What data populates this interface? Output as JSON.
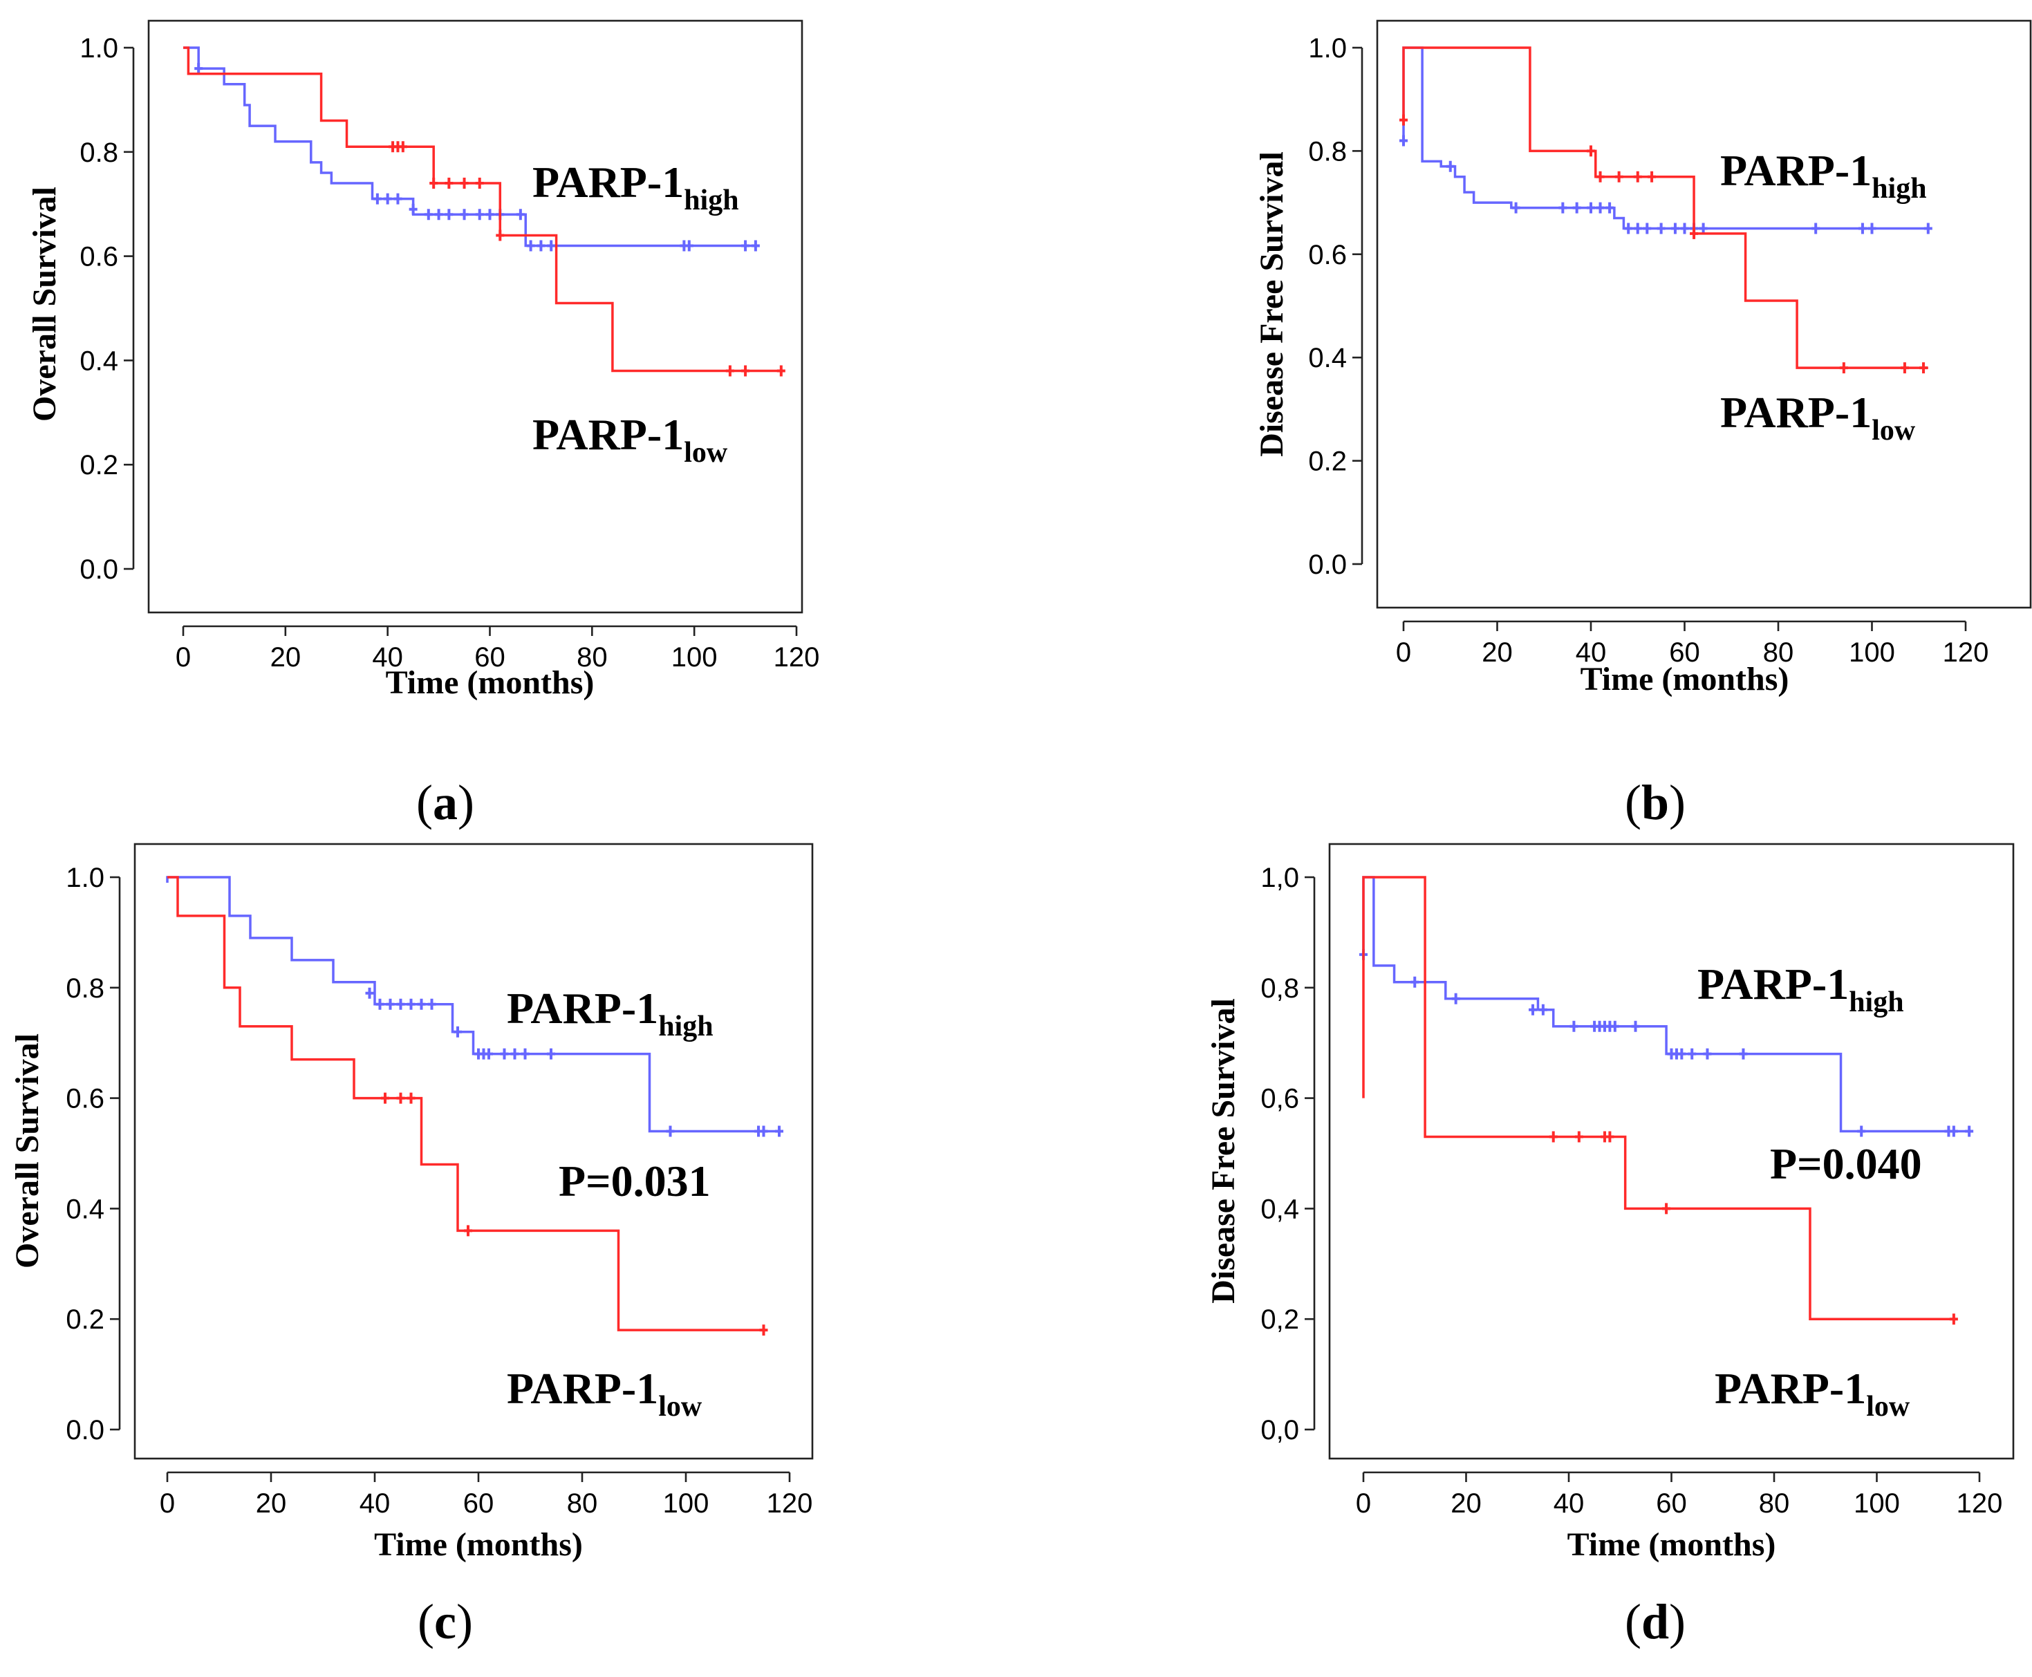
{
  "colors": {
    "high": "#6666ff",
    "low": "#ff2a2a",
    "axis": "#222222"
  },
  "chart_data": [
    {
      "type": "line",
      "panel": "a",
      "caption_letter": "a",
      "xlabel": "Time (months)",
      "ylabel": "Overall Survival",
      "xlim": [
        0,
        120
      ],
      "ylim": [
        0.0,
        1.0
      ],
      "xticks": [
        "0",
        "20",
        "40",
        "60",
        "80",
        "100",
        "120"
      ],
      "yticks": [
        "0.0",
        "0.2",
        "0.4",
        "0.6",
        "0.8",
        "1.0"
      ],
      "series": [
        {
          "name": "PARP-1 high",
          "color_key": "high",
          "x": [
            0,
            1,
            3,
            5,
            8,
            10,
            12,
            13,
            16,
            18,
            22,
            25,
            27,
            29,
            33,
            37,
            40,
            45,
            48,
            50,
            63,
            67,
            69,
            72,
            112
          ],
          "y": [
            1.0,
            1.0,
            0.96,
            0.96,
            0.93,
            0.93,
            0.89,
            0.85,
            0.85,
            0.82,
            0.82,
            0.78,
            0.76,
            0.74,
            0.74,
            0.71,
            0.71,
            0.68,
            0.68,
            0.68,
            0.68,
            0.62,
            0.62,
            0.62,
            0.62
          ],
          "censored": [
            [
              3,
              0.96
            ],
            [
              38,
              0.71
            ],
            [
              40,
              0.71
            ],
            [
              42,
              0.71
            ],
            [
              45,
              0.69
            ],
            [
              48,
              0.68
            ],
            [
              50,
              0.68
            ],
            [
              52,
              0.68
            ],
            [
              55,
              0.68
            ],
            [
              58,
              0.68
            ],
            [
              60,
              0.68
            ],
            [
              62,
              0.68
            ],
            [
              66,
              0.68
            ],
            [
              68,
              0.62
            ],
            [
              70,
              0.62
            ],
            [
              72,
              0.62
            ],
            [
              98,
              0.62
            ],
            [
              99,
              0.62
            ],
            [
              110,
              0.62
            ],
            [
              112,
              0.62
            ]
          ]
        },
        {
          "name": "PARP-1 low",
          "color_key": "low",
          "x": [
            0,
            1,
            25,
            27,
            32,
            49,
            62,
            73,
            84,
            117
          ],
          "y": [
            1.0,
            0.95,
            0.95,
            0.86,
            0.81,
            0.74,
            0.64,
            0.51,
            0.38,
            0.38
          ],
          "censored": [
            [
              41,
              0.81
            ],
            [
              42,
              0.81
            ],
            [
              43,
              0.81
            ],
            [
              49,
              0.74
            ],
            [
              52,
              0.74
            ],
            [
              55,
              0.74
            ],
            [
              58,
              0.74
            ],
            [
              62,
              0.64
            ],
            [
              107,
              0.38
            ],
            [
              110,
              0.38
            ],
            [
              117,
              0.38
            ]
          ]
        }
      ],
      "labels": {
        "high_main": "PARP-1",
        "high_sub": "high",
        "low_main": "PARP-1",
        "low_sub": "low"
      }
    },
    {
      "type": "line",
      "panel": "b",
      "caption_letter": "b",
      "xlabel": "Time (months)",
      "ylabel": "Disease Free Survival",
      "xlim": [
        0,
        120
      ],
      "ylim": [
        0.0,
        1.0
      ],
      "xticks": [
        "0",
        "20",
        "40",
        "60",
        "80",
        "100",
        "120"
      ],
      "yticks": [
        "0.0",
        "0.2",
        "0.4",
        "0.6",
        "0.8",
        "1.0"
      ],
      "series": [
        {
          "name": "PARP-1 high",
          "color_key": "high",
          "x": [
            0,
            0,
            3,
            4,
            8,
            11,
            13,
            15,
            23,
            45,
            47,
            112
          ],
          "y": [
            0.82,
            1.0,
            1.0,
            0.78,
            0.77,
            0.75,
            0.72,
            0.7,
            0.69,
            0.67,
            0.65,
            0.65
          ],
          "censored": [
            [
              0,
              0.82
            ],
            [
              10,
              0.77
            ],
            [
              24,
              0.69
            ],
            [
              34,
              0.69
            ],
            [
              37,
              0.69
            ],
            [
              40,
              0.69
            ],
            [
              42,
              0.69
            ],
            [
              44,
              0.69
            ],
            [
              48,
              0.65
            ],
            [
              50,
              0.65
            ],
            [
              52,
              0.65
            ],
            [
              55,
              0.65
            ],
            [
              58,
              0.65
            ],
            [
              60,
              0.65
            ],
            [
              62,
              0.65
            ],
            [
              64,
              0.65
            ],
            [
              88,
              0.65
            ],
            [
              98,
              0.65
            ],
            [
              100,
              0.65
            ],
            [
              112,
              0.65
            ]
          ]
        },
        {
          "name": "PARP-1 low",
          "color_key": "low",
          "x": [
            0,
            0,
            27,
            41,
            62,
            73,
            84,
            112
          ],
          "y": [
            0.86,
            1.0,
            0.8,
            0.75,
            0.64,
            0.51,
            0.38,
            0.38
          ],
          "censored": [
            [
              0,
              0.86
            ],
            [
              40,
              0.8
            ],
            [
              42,
              0.75
            ],
            [
              46,
              0.75
            ],
            [
              50,
              0.75
            ],
            [
              53,
              0.75
            ],
            [
              62,
              0.64
            ],
            [
              94,
              0.38
            ],
            [
              107,
              0.38
            ],
            [
              111,
              0.38
            ]
          ]
        }
      ],
      "labels": {
        "high_main": "PARP-1",
        "high_sub": "high",
        "low_main": "PARP-1",
        "low_sub": "low"
      }
    },
    {
      "type": "line",
      "panel": "c",
      "caption_letter": "c",
      "xlabel": "Time (months)",
      "ylabel": "Overall Survival",
      "xlim": [
        0,
        120
      ],
      "ylim": [
        0.0,
        1.0
      ],
      "xticks": [
        "0",
        "20",
        "40",
        "60",
        "80",
        "100",
        "120"
      ],
      "yticks": [
        "0.0",
        "0.2",
        "0.4",
        "0.6",
        "0.8",
        "1.0"
      ],
      "series": [
        {
          "name": "PARP-1 high",
          "color_key": "high",
          "x": [
            0,
            0,
            12,
            16,
            24,
            32,
            40,
            55,
            59,
            93,
            118
          ],
          "y": [
            0.99,
            1.0,
            0.93,
            0.89,
            0.85,
            0.81,
            0.77,
            0.72,
            0.68,
            0.54,
            0.54
          ],
          "censored": [
            [
              39,
              0.79
            ],
            [
              41,
              0.77
            ],
            [
              43,
              0.77
            ],
            [
              45,
              0.77
            ],
            [
              47,
              0.77
            ],
            [
              49,
              0.77
            ],
            [
              51,
              0.77
            ],
            [
              56,
              0.72
            ],
            [
              60,
              0.68
            ],
            [
              61,
              0.68
            ],
            [
              62,
              0.68
            ],
            [
              65,
              0.68
            ],
            [
              67,
              0.68
            ],
            [
              69,
              0.68
            ],
            [
              74,
              0.68
            ],
            [
              97,
              0.54
            ],
            [
              114,
              0.54
            ],
            [
              115,
              0.54
            ],
            [
              118,
              0.54
            ]
          ]
        },
        {
          "name": "PARP-1 low",
          "color_key": "low",
          "x": [
            0,
            2,
            11,
            14,
            24,
            36,
            49,
            56,
            87,
            115
          ],
          "y": [
            1.0,
            0.93,
            0.8,
            0.73,
            0.67,
            0.6,
            0.48,
            0.36,
            0.18,
            0.18
          ],
          "censored": [
            [
              42,
              0.6
            ],
            [
              45,
              0.6
            ],
            [
              47,
              0.6
            ],
            [
              58,
              0.36
            ],
            [
              115,
              0.18
            ]
          ]
        }
      ],
      "labels": {
        "high_main": "PARP-1",
        "high_sub": "high",
        "low_main": "PARP-1",
        "low_sub": "low",
        "pvalue": "P=0.031"
      }
    },
    {
      "type": "line",
      "panel": "d",
      "caption_letter": "d",
      "xlabel": "Time (months)",
      "ylabel": "Disease Free Survival",
      "xlim": [
        0,
        120
      ],
      "ylim": [
        0.0,
        1.0
      ],
      "xticks": [
        "0",
        "20",
        "40",
        "60",
        "80",
        "100",
        "120"
      ],
      "yticks": [
        "0,0",
        "0,2",
        "0,4",
        "0,6",
        "0,8",
        "1,0"
      ],
      "series": [
        {
          "name": "PARP-1 high",
          "color_key": "high",
          "x": [
            0,
            0,
            2,
            6,
            16,
            34,
            37,
            54,
            59,
            93,
            118
          ],
          "y": [
            0.86,
            1.0,
            0.84,
            0.81,
            0.78,
            0.76,
            0.73,
            0.73,
            0.68,
            0.54,
            0.54
          ],
          "censored": [
            [
              0,
              0.86
            ],
            [
              10,
              0.81
            ],
            [
              18,
              0.78
            ],
            [
              33,
              0.76
            ],
            [
              35,
              0.76
            ],
            [
              41,
              0.73
            ],
            [
              45,
              0.73
            ],
            [
              46,
              0.73
            ],
            [
              47,
              0.73
            ],
            [
              48,
              0.73
            ],
            [
              49,
              0.73
            ],
            [
              53,
              0.73
            ],
            [
              60,
              0.68
            ],
            [
              61,
              0.68
            ],
            [
              62,
              0.68
            ],
            [
              64,
              0.68
            ],
            [
              67,
              0.68
            ],
            [
              74,
              0.68
            ],
            [
              97,
              0.54
            ],
            [
              114,
              0.54
            ],
            [
              115,
              0.54
            ],
            [
              118,
              0.54
            ]
          ]
        },
        {
          "name": "PARP-1 low",
          "color_key": "low",
          "x": [
            0,
            0,
            12,
            51,
            87,
            115
          ],
          "y": [
            0.6,
            1.0,
            0.53,
            0.4,
            0.2,
            0.2
          ],
          "censored": [
            [
              37,
              0.53
            ],
            [
              42,
              0.53
            ],
            [
              47,
              0.53
            ],
            [
              48,
              0.53
            ],
            [
              59,
              0.4
            ],
            [
              115,
              0.2
            ]
          ]
        }
      ],
      "labels": {
        "high_main": "PARP-1",
        "high_sub": "high",
        "low_main": "PARP-1",
        "low_sub": "low",
        "pvalue": "P=0.040"
      }
    }
  ]
}
